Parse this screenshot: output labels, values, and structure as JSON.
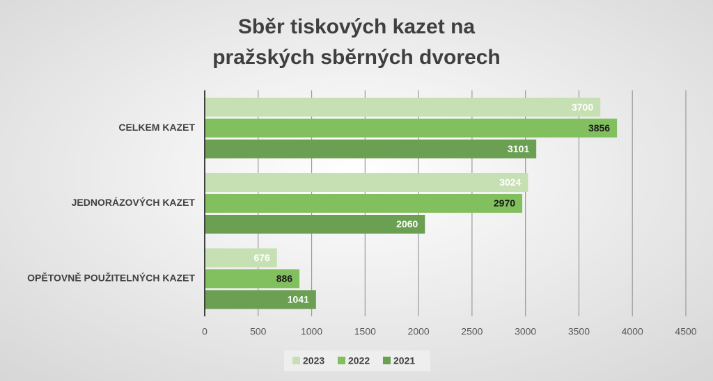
{
  "chart_data": {
    "type": "bar",
    "orientation": "horizontal",
    "title": [
      "Sběr tiskových kazet na",
      "pražských sběrných dvorech"
    ],
    "categories": [
      "CELKEM KAZET",
      "JEDNORÁZOVÝCH KAZET",
      "OPĚTOVNĚ POUŽITELNÝCH KAZET"
    ],
    "series": [
      {
        "name": "2023",
        "color": "#c6e0b4",
        "label_color": "#ffffff",
        "values": [
          3700,
          3024,
          676
        ]
      },
      {
        "name": "2022",
        "color": "#82bf5e",
        "label_color": "#1a1a1a",
        "values": [
          3856,
          2970,
          886
        ]
      },
      {
        "name": "2021",
        "color": "#6b9f52",
        "label_color": "#ffffff",
        "values": [
          3101,
          2060,
          1041
        ]
      }
    ],
    "xlim": [
      0,
      4500
    ],
    "xticks": [
      0,
      500,
      1000,
      1500,
      2000,
      2500,
      3000,
      3500,
      4000,
      4500
    ],
    "grid": true,
    "legend": "bottom"
  }
}
